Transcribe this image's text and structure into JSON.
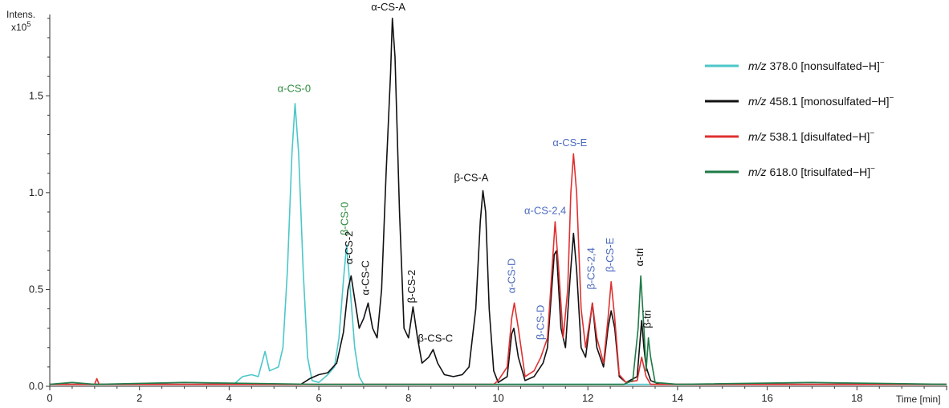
{
  "chart_data": {
    "type": "line",
    "y_title_line1": "Intens.",
    "y_title_line2": "x10",
    "y_title_exp": "5",
    "x_title": "Time [min]",
    "xlim": [
      0,
      20
    ],
    "ylim": [
      0,
      1.92
    ],
    "x_ticks": [
      {
        "v": 0,
        "label": "0"
      },
      {
        "v": 2,
        "label": "2"
      },
      {
        "v": 4,
        "label": "4"
      },
      {
        "v": 6,
        "label": "6"
      },
      {
        "v": 8,
        "label": "8"
      },
      {
        "v": 10,
        "label": "10"
      },
      {
        "v": 12,
        "label": "12"
      },
      {
        "v": 14,
        "label": "14"
      },
      {
        "v": 16,
        "label": "16"
      },
      {
        "v": 18,
        "label": "18"
      }
    ],
    "y_ticks": [
      {
        "v": 0.0,
        "label": "0.0"
      },
      {
        "v": 0.5,
        "label": "0.5"
      },
      {
        "v": 1.0,
        "label": "1.0"
      },
      {
        "v": 1.5,
        "label": "1.5"
      }
    ],
    "series": [
      {
        "key": "nonsulfated",
        "color": "#4cc7c9",
        "legend_mz": "m/z",
        "legend_text": " 378.0  [nonsulfated−H]",
        "legend_sup": "−",
        "points": [
          [
            0,
            0.01
          ],
          [
            4.1,
            0.01
          ],
          [
            4.3,
            0.05
          ],
          [
            4.5,
            0.06
          ],
          [
            4.65,
            0.05
          ],
          [
            4.8,
            0.18
          ],
          [
            4.9,
            0.08
          ],
          [
            5.0,
            0.09
          ],
          [
            5.1,
            0.1
          ],
          [
            5.2,
            0.2
          ],
          [
            5.3,
            0.6
          ],
          [
            5.4,
            1.2
          ],
          [
            5.47,
            1.46
          ],
          [
            5.55,
            1.2
          ],
          [
            5.65,
            0.6
          ],
          [
            5.75,
            0.15
          ],
          [
            5.85,
            0.03
          ],
          [
            6.0,
            0.02
          ],
          [
            6.2,
            0.06
          ],
          [
            6.35,
            0.1
          ],
          [
            6.45,
            0.25
          ],
          [
            6.55,
            0.55
          ],
          [
            6.62,
            0.73
          ],
          [
            6.7,
            0.5
          ],
          [
            6.8,
            0.2
          ],
          [
            6.9,
            0.05
          ],
          [
            7.0,
            0.01
          ],
          [
            20,
            0.01
          ]
        ]
      },
      {
        "key": "monosulfated",
        "color": "#111111",
        "legend_mz": "m/z",
        "legend_text": " 458.1  [monosulfated−H]",
        "legend_sup": "−",
        "points": [
          [
            0,
            0.01
          ],
          [
            5.6,
            0.01
          ],
          [
            5.8,
            0.04
          ],
          [
            6.0,
            0.06
          ],
          [
            6.2,
            0.07
          ],
          [
            6.4,
            0.12
          ],
          [
            6.55,
            0.28
          ],
          [
            6.65,
            0.5
          ],
          [
            6.72,
            0.57
          ],
          [
            6.8,
            0.45
          ],
          [
            6.9,
            0.3
          ],
          [
            7.0,
            0.35
          ],
          [
            7.1,
            0.43
          ],
          [
            7.2,
            0.3
          ],
          [
            7.3,
            0.25
          ],
          [
            7.4,
            0.5
          ],
          [
            7.5,
            1.1
          ],
          [
            7.6,
            1.62
          ],
          [
            7.64,
            1.9
          ],
          [
            7.7,
            1.7
          ],
          [
            7.8,
            0.9
          ],
          [
            7.9,
            0.3
          ],
          [
            8.0,
            0.25
          ],
          [
            8.1,
            0.41
          ],
          [
            8.2,
            0.25
          ],
          [
            8.3,
            0.12
          ],
          [
            8.45,
            0.15
          ],
          [
            8.55,
            0.19
          ],
          [
            8.65,
            0.12
          ],
          [
            8.8,
            0.06
          ],
          [
            9.0,
            0.05
          ],
          [
            9.2,
            0.06
          ],
          [
            9.35,
            0.1
          ],
          [
            9.5,
            0.4
          ],
          [
            9.6,
            0.85
          ],
          [
            9.66,
            1.01
          ],
          [
            9.72,
            0.9
          ],
          [
            9.8,
            0.4
          ],
          [
            9.9,
            0.08
          ],
          [
            10.0,
            0.02
          ],
          [
            10.2,
            0.05
          ],
          [
            10.3,
            0.27
          ],
          [
            10.35,
            0.3
          ],
          [
            10.45,
            0.15
          ],
          [
            10.6,
            0.03
          ],
          [
            10.8,
            0.05
          ],
          [
            11.0,
            0.12
          ],
          [
            11.1,
            0.2
          ],
          [
            11.25,
            0.68
          ],
          [
            11.3,
            0.7
          ],
          [
            11.4,
            0.3
          ],
          [
            11.5,
            0.2
          ],
          [
            11.6,
            0.55
          ],
          [
            11.68,
            0.79
          ],
          [
            11.75,
            0.6
          ],
          [
            11.85,
            0.2
          ],
          [
            11.95,
            0.15
          ],
          [
            12.1,
            0.43
          ],
          [
            12.2,
            0.2
          ],
          [
            12.35,
            0.1
          ],
          [
            12.45,
            0.3
          ],
          [
            12.52,
            0.39
          ],
          [
            12.6,
            0.3
          ],
          [
            12.7,
            0.05
          ],
          [
            12.85,
            0.02
          ],
          [
            13.1,
            0.05
          ],
          [
            13.2,
            0.34
          ],
          [
            13.25,
            0.2
          ],
          [
            13.3,
            0.1
          ],
          [
            13.4,
            0.03
          ],
          [
            13.6,
            0.01
          ],
          [
            20,
            0.01
          ]
        ]
      },
      {
        "key": "disulfated",
        "color": "#e03030",
        "legend_mz": "m/z",
        "legend_text": " 538.1  [disulfated−H]",
        "legend_sup": "−",
        "points": [
          [
            0,
            0.01
          ],
          [
            1.0,
            0.01
          ],
          [
            1.05,
            0.04
          ],
          [
            1.1,
            0.01
          ],
          [
            2.0,
            0.01
          ],
          [
            9.9,
            0.01
          ],
          [
            10.0,
            0.03
          ],
          [
            10.2,
            0.1
          ],
          [
            10.3,
            0.35
          ],
          [
            10.36,
            0.43
          ],
          [
            10.45,
            0.3
          ],
          [
            10.6,
            0.05
          ],
          [
            10.8,
            0.08
          ],
          [
            10.95,
            0.15
          ],
          [
            11.1,
            0.25
          ],
          [
            11.2,
            0.6
          ],
          [
            11.27,
            0.85
          ],
          [
            11.35,
            0.6
          ],
          [
            11.45,
            0.25
          ],
          [
            11.55,
            0.5
          ],
          [
            11.62,
            1.0
          ],
          [
            11.68,
            1.2
          ],
          [
            11.75,
            1.0
          ],
          [
            11.85,
            0.4
          ],
          [
            11.95,
            0.2
          ],
          [
            12.05,
            0.35
          ],
          [
            12.1,
            0.43
          ],
          [
            12.2,
            0.25
          ],
          [
            12.35,
            0.12
          ],
          [
            12.45,
            0.35
          ],
          [
            12.52,
            0.54
          ],
          [
            12.6,
            0.35
          ],
          [
            12.7,
            0.06
          ],
          [
            12.85,
            0.02
          ],
          [
            13.1,
            0.03
          ],
          [
            13.2,
            0.15
          ],
          [
            13.3,
            0.05
          ],
          [
            13.4,
            0.01
          ],
          [
            20,
            0.01
          ]
        ]
      },
      {
        "key": "trisulfated",
        "color": "#1e7a46",
        "legend_mz": "m/z",
        "legend_text": " 618.0  [trisulfated−H]",
        "legend_sup": "−",
        "points": [
          [
            0,
            0.01
          ],
          [
            0.5,
            0.02
          ],
          [
            1.0,
            0.01
          ],
          [
            3.0,
            0.02
          ],
          [
            6.0,
            0.01
          ],
          [
            12.8,
            0.01
          ],
          [
            13.0,
            0.03
          ],
          [
            13.12,
            0.3
          ],
          [
            13.18,
            0.57
          ],
          [
            13.25,
            0.3
          ],
          [
            13.3,
            0.08
          ],
          [
            13.35,
            0.25
          ],
          [
            13.4,
            0.15
          ],
          [
            13.5,
            0.02
          ],
          [
            14.0,
            0.01
          ],
          [
            17.0,
            0.02
          ],
          [
            20,
            0.01
          ]
        ]
      }
    ],
    "peak_labels": [
      {
        "text": "α-CS-0",
        "x": 5.45,
        "y": 1.52,
        "color": "#2e8b3e",
        "rot": 0
      },
      {
        "text": "β-CS-0",
        "x": 6.65,
        "y": 0.78,
        "color": "#2e8b3e",
        "rot": -90
      },
      {
        "text": "α-CS-2",
        "x": 6.75,
        "y": 0.63,
        "color": "#111111",
        "rot": -90
      },
      {
        "text": "α-CS-C",
        "x": 7.12,
        "y": 0.47,
        "color": "#111111",
        "rot": -90
      },
      {
        "text": "α-CS-A",
        "x": 7.55,
        "y": 1.94,
        "color": "#111111",
        "rot": 0
      },
      {
        "text": "β-CS-2",
        "x": 8.15,
        "y": 0.43,
        "color": "#111111",
        "rot": -90
      },
      {
        "text": "β-CS-C",
        "x": 8.6,
        "y": 0.23,
        "color": "#111111",
        "rot": 0
      },
      {
        "text": "β-CS-A",
        "x": 9.4,
        "y": 1.06,
        "color": "#111111",
        "rot": 0
      },
      {
        "text": "α-CS-D",
        "x": 10.38,
        "y": 0.48,
        "color": "#4c6bc0",
        "rot": -90
      },
      {
        "text": "β-CS-D",
        "x": 11.02,
        "y": 0.24,
        "color": "#4c6bc0",
        "rot": -90
      },
      {
        "text": "α-CS-2,4",
        "x": 11.05,
        "y": 0.89,
        "color": "#4c6bc0",
        "rot": 0
      },
      {
        "text": "α-CS-E",
        "x": 11.6,
        "y": 1.24,
        "color": "#4c6bc0",
        "rot": 0
      },
      {
        "text": "β-CS-2,4",
        "x": 12.15,
        "y": 0.5,
        "color": "#4c6bc0",
        "rot": -90
      },
      {
        "text": "β-CS-E",
        "x": 12.57,
        "y": 0.59,
        "color": "#4c6bc0",
        "rot": -90
      },
      {
        "text": "α-tri",
        "x": 13.23,
        "y": 0.62,
        "color": "#111111",
        "rot": -90
      },
      {
        "text": "β-tri",
        "x": 13.4,
        "y": 0.3,
        "color": "#111111",
        "rot": -90
      }
    ],
    "grid": false,
    "legend_position": "top-right"
  }
}
